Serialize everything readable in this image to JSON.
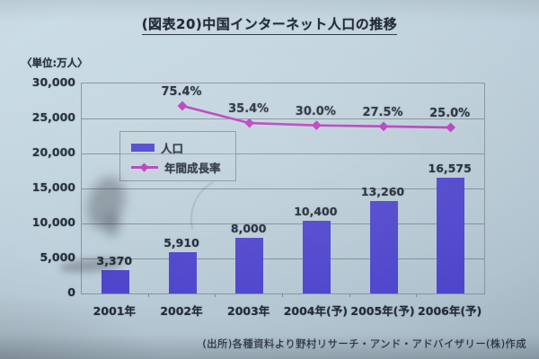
{
  "slide": {
    "title": "(図表20)中国インターネット人口の推移",
    "unit_label": "〈単位:万人〉",
    "source": "(出所)各種資料より野村リサーチ・アンド・アドバイザリー(株)作成"
  },
  "legend": {
    "population_label": "人口",
    "growth_label": "年間成長率"
  },
  "colors": {
    "bar": "#4f45cc",
    "line": "#bb3cbe",
    "grid": "#7a848e",
    "text": "#222b36"
  },
  "chart_data": {
    "type": "bar",
    "title": "(図表20)中国インターネット人口の推移",
    "categories": [
      "2001年",
      "2002年",
      "2003年",
      "2004年(予)",
      "2005年(予)",
      "2006年(予)"
    ],
    "series": [
      {
        "name": "人口",
        "type": "bar",
        "values": [
          3370,
          5910,
          8000,
          10400,
          13260,
          16575
        ],
        "labels": [
          "3,370",
          "5,910",
          "8,000",
          "10,400",
          "13,260",
          "16,575"
        ]
      },
      {
        "name": "年間成長率",
        "type": "line",
        "values": [
          null,
          75.4,
          35.4,
          30.0,
          27.5,
          25.0
        ],
        "labels": [
          "",
          "75.4%",
          "35.4%",
          "30.0%",
          "27.5%",
          "25.0%"
        ]
      }
    ],
    "xlabel": "",
    "ylabel": "万人",
    "ylim": [
      0,
      30000
    ],
    "ytick_step": 5000,
    "yticks": [
      "0",
      "5,000",
      "10,000",
      "15,000",
      "20,000",
      "25,000",
      "30,000"
    ],
    "grid": true,
    "legend_position": "inside-upper-left"
  }
}
